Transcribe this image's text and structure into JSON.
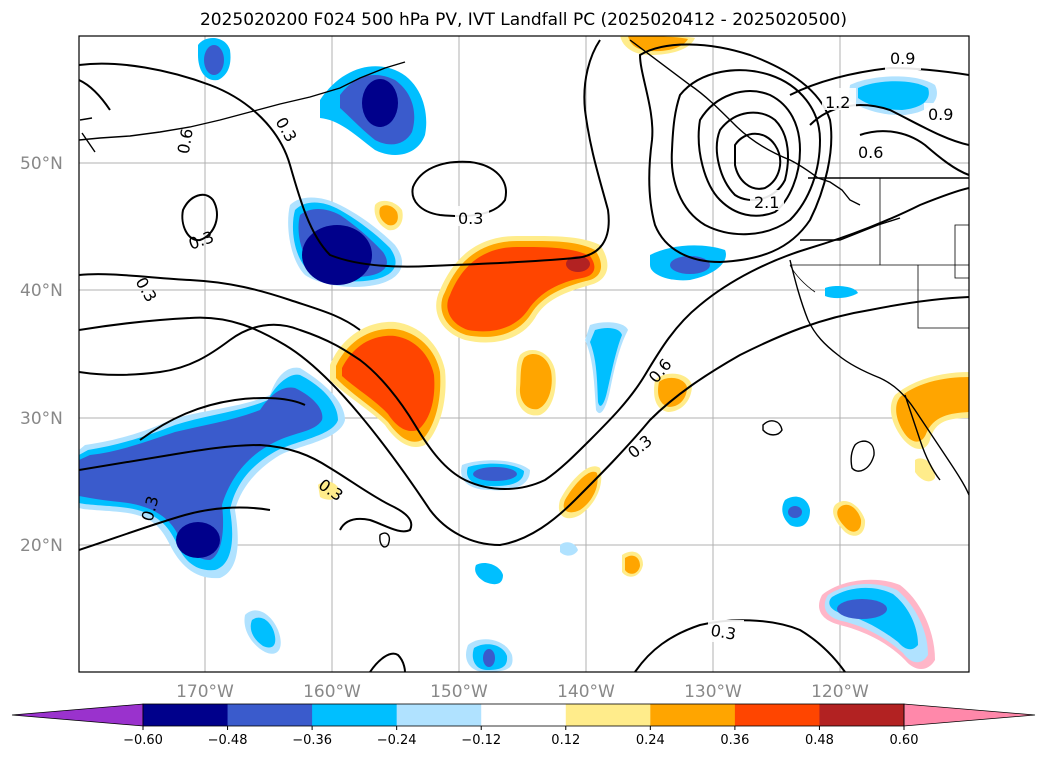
{
  "title": "2025020200 F024 500 hPa PV, IVT Landfall PC (2025020412 - 2025020500)",
  "lat_labels": [
    "50°N",
    "40°N",
    "30°N",
    "20°N"
  ],
  "lon_labels": [
    "170°W",
    "160°W",
    "150°W",
    "140°W",
    "130°W",
    "120°W"
  ],
  "contour_labels": [
    "0.9",
    "1.2",
    "0.9",
    "0.6",
    "2.1",
    "0.6",
    "0.3",
    "0.3",
    "0.3",
    "0.3",
    "0.6",
    "0.3",
    "0.3",
    "0.3",
    "0.3"
  ],
  "colorbar": {
    "ticks": [
      "−0.60",
      "−0.48",
      "−0.36",
      "−0.24",
      "−0.12",
      "0.12",
      "0.24",
      "0.36",
      "0.48",
      "0.60"
    ],
    "colors": [
      "#9a32cd",
      "#00008b",
      "#3a5bcc",
      "#00bfff",
      "#b0e2ff",
      "#ffffff",
      "#ffec8b",
      "#ffa500",
      "#ff4500",
      "#b22222",
      "#ff88aa"
    ]
  },
  "colors": {
    "neg_strong": "#00008b",
    "neg_mid": "#3a5bcc",
    "neg_light": "#00bfff",
    "neg_faint": "#b0e2ff",
    "pos_faint": "#ffec8b",
    "pos_light": "#ffa500",
    "pos_mid": "#ff4500",
    "pos_strong": "#b22222"
  }
}
